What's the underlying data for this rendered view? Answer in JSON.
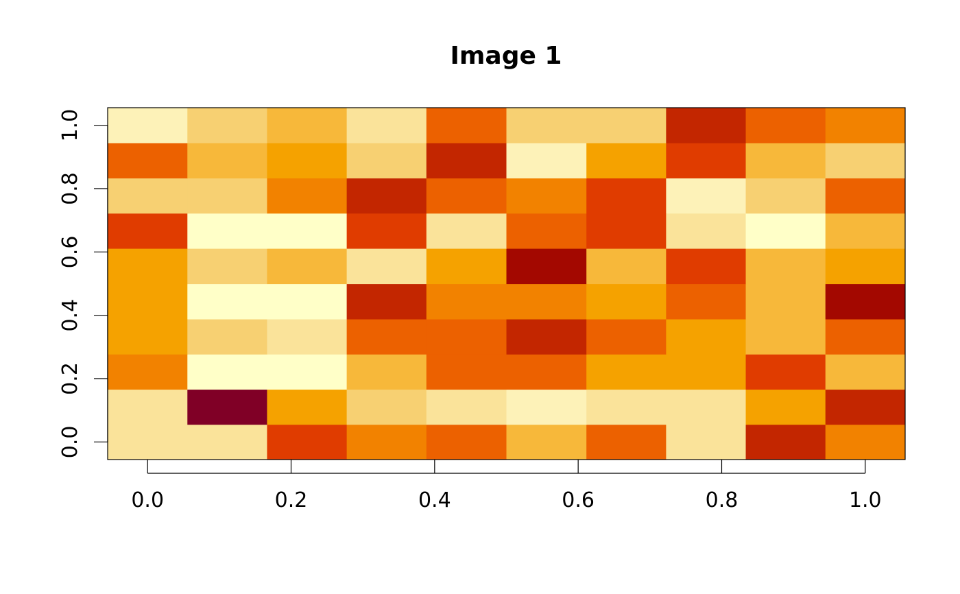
{
  "chart_data": {
    "type": "heatmap",
    "title": "Image 1",
    "xlabel": "",
    "ylabel": "",
    "x_ticks": [
      "0.0",
      "0.2",
      "0.4",
      "0.6",
      "0.8",
      "1.0"
    ],
    "y_ticks": [
      "0.0",
      "0.2",
      "0.4",
      "0.6",
      "0.8",
      "1.0"
    ],
    "x": [
      0.0,
      0.111,
      0.222,
      0.333,
      0.444,
      0.556,
      0.667,
      0.778,
      0.889,
      1.0
    ],
    "y": [
      0.0,
      0.111,
      0.222,
      0.333,
      0.444,
      0.556,
      0.667,
      0.778,
      0.889,
      1.0
    ],
    "xlim": [
      -0.0556,
      1.0556
    ],
    "ylim": [
      -0.0556,
      1.0556
    ],
    "colormap": "heat (low = dark red, high = pale yellow)",
    "palette": [
      "#800026",
      "#A30800",
      "#C32600",
      "#E03C00",
      "#EC6100",
      "#F28200",
      "#F5A200",
      "#F7B83A",
      "#F7D072",
      "#FAE39A",
      "#FDF2B8",
      "#FFFFC8"
    ],
    "values": [
      [
        9,
        9,
        3,
        5,
        4,
        7,
        4,
        9,
        2,
        5
      ],
      [
        9,
        0,
        6,
        8,
        9,
        10,
        9,
        9,
        6,
        2
      ],
      [
        5,
        11,
        11,
        7,
        4,
        4,
        6,
        6,
        3,
        7
      ],
      [
        6,
        8,
        9,
        4,
        4,
        2,
        4,
        6,
        7,
        4
      ],
      [
        6,
        11,
        11,
        2,
        5,
        5,
        6,
        4,
        7,
        1
      ],
      [
        6,
        8,
        7,
        9,
        6,
        1,
        7,
        3,
        7,
        6
      ],
      [
        3,
        11,
        11,
        3,
        9,
        4,
        3,
        9,
        11,
        7
      ],
      [
        8,
        8,
        5,
        2,
        4,
        5,
        3,
        10,
        8,
        4
      ],
      [
        4,
        7,
        6,
        8,
        2,
        10,
        6,
        3,
        7,
        8
      ],
      [
        10,
        8,
        7,
        9,
        4,
        8,
        8,
        2,
        4,
        5
      ]
    ],
    "values_note": "rows from y=0.0 (bottom) to y=1.0 (top); columns from x=0.0 to x=1.0; index into palette",
    "grid": false,
    "legend": "none"
  }
}
